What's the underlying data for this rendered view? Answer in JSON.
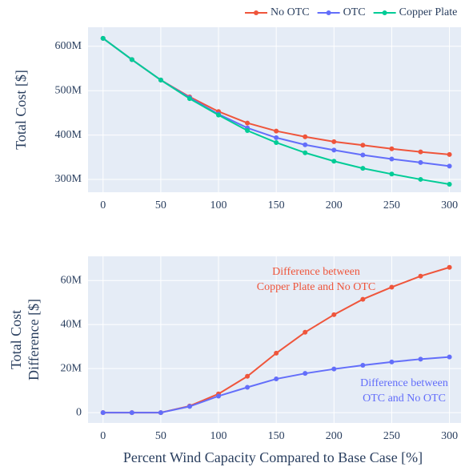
{
  "chart_data": [
    {
      "type": "line",
      "x": [
        0,
        25,
        50,
        75,
        100,
        125,
        150,
        175,
        200,
        225,
        250,
        275,
        300
      ],
      "series": [
        {
          "name": "No OTC",
          "color": "#ef553b",
          "values": [
            618000000,
            570000000,
            524000000,
            486000000,
            453000000,
            427000000,
            409000000,
            396000000,
            385000000,
            377000000,
            369000000,
            362000000,
            356000000
          ]
        },
        {
          "name": "OTC",
          "color": "#636efa",
          "values": [
            618000000,
            570000000,
            524000000,
            484000000,
            447000000,
            416000000,
            394000000,
            378000000,
            366000000,
            355000000,
            346000000,
            338000000,
            330000000
          ]
        },
        {
          "name": "Copper Plate",
          "color": "#00cc96",
          "values": [
            618000000,
            570000000,
            524000000,
            482000000,
            445000000,
            410000000,
            383000000,
            360000000,
            341000000,
            325000000,
            312000000,
            300000000,
            289000000
          ]
        }
      ],
      "xlim": [
        -13,
        310
      ],
      "xticks": [
        0,
        50,
        100,
        150,
        200,
        250,
        300
      ],
      "ylim": [
        271000000,
        643000000
      ],
      "yticks": [
        {
          "value": 300000000,
          "label": "300M"
        },
        {
          "value": 400000000,
          "label": "400M"
        },
        {
          "value": 500000000,
          "label": "500M"
        },
        {
          "value": 600000000,
          "label": "600M"
        }
      ],
      "ylabel": [
        "Total Cost [$]"
      ],
      "legend": "top-right",
      "grid": true
    },
    {
      "type": "line",
      "x": [
        0,
        25,
        50,
        75,
        100,
        125,
        150,
        175,
        200,
        225,
        250,
        275,
        300
      ],
      "series": [
        {
          "color": "#ef553b",
          "values": [
            0,
            0,
            0,
            3000000,
            8500000,
            16500000,
            27000000,
            36500000,
            44500000,
            51500000,
            57000000,
            62000000,
            66000000
          ]
        },
        {
          "color": "#636efa",
          "values": [
            0,
            0,
            0,
            2800000,
            7500000,
            11500000,
            15300000,
            17800000,
            19800000,
            21500000,
            23000000,
            24300000,
            25300000
          ]
        }
      ],
      "xlim": [
        -13,
        310
      ],
      "xticks": [
        0,
        50,
        100,
        150,
        200,
        250,
        300
      ],
      "ylim": [
        -4700000,
        71000000
      ],
      "yticks": [
        0,
        {
          "value": 20000000,
          "label": "20M"
        },
        {
          "value": 40000000,
          "label": "40M"
        },
        {
          "value": 60000000,
          "label": "60M"
        }
      ],
      "ylabel": [
        "Total Cost",
        "Difference [$]"
      ],
      "xlabel": "Percent Wind Capacity Compared to Base Case [%]",
      "annotations": [
        {
          "lines": [
            "Difference between",
            "Copper Plate and No OTC"
          ],
          "color": "#ef553b"
        },
        {
          "lines": [
            "Difference between",
            "OTC and No OTC"
          ],
          "color": "#636efa"
        }
      ],
      "grid": true
    }
  ]
}
